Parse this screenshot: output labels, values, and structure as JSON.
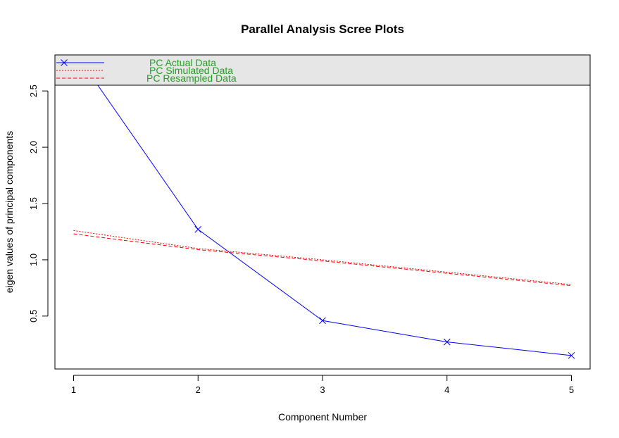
{
  "chart_data": {
    "type": "line",
    "title": "Parallel Analysis Scree Plots",
    "xlabel": "Component Number",
    "ylabel": "eigen values of principal components",
    "x": [
      1,
      2,
      3,
      4,
      5
    ],
    "xlim": [
      0.85,
      5.15
    ],
    "ylim": [
      0.03,
      2.82
    ],
    "x_ticks": [
      "1",
      "2",
      "3",
      "4",
      "5"
    ],
    "y_ticks": [
      0.5,
      1.0,
      1.5,
      2.0,
      2.5
    ],
    "y_tick_labels": [
      "0.5",
      "1.0",
      "1.5",
      "2.0",
      "2.5"
    ],
    "grid": false,
    "legend_placement": "top",
    "series": [
      {
        "name": "PC  Actual Data",
        "values": [
          2.86,
          1.27,
          0.46,
          0.27,
          0.15
        ],
        "color": "#0000ff",
        "style": "solid",
        "marker": "x"
      },
      {
        "name": "PC  Simulated Data",
        "values": [
          1.26,
          1.1,
          1.0,
          0.89,
          0.78
        ],
        "color": "#ff0000",
        "style": "dotted",
        "marker": "none"
      },
      {
        "name": "PC  Resampled Data",
        "values": [
          1.23,
          1.09,
          0.99,
          0.88,
          0.77
        ],
        "color": "#ff0000",
        "style": "dashed",
        "marker": "none"
      }
    ],
    "colors": {
      "legend_text": "#22a022",
      "legend_background": "#e6e6e6"
    }
  }
}
